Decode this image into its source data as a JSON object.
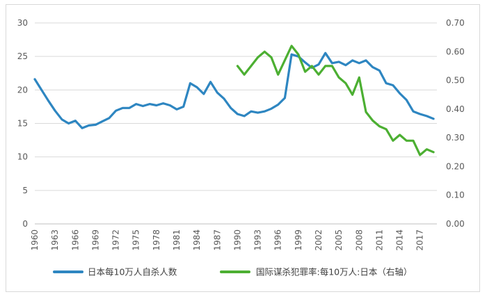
{
  "chart_data": {
    "type": "line",
    "title": "",
    "xlabel": "",
    "ylabel": "",
    "x_tick_labels": [
      "1960",
      "1963",
      "1966",
      "1969",
      "1972",
      "1975",
      "1978",
      "1981",
      "1984",
      "1987",
      "1990",
      "1993",
      "1996",
      "1999",
      "2002",
      "2005",
      "2008",
      "2011",
      "2014",
      "2017"
    ],
    "y_left": {
      "min": 0,
      "max": 30,
      "ticks": [
        "0",
        "5",
        "10",
        "15",
        "20",
        "25",
        "30"
      ]
    },
    "y_right": {
      "min": 0,
      "max": 0.7,
      "ticks": [
        "0.00",
        "0.10",
        "0.20",
        "0.30",
        "0.40",
        "0.50",
        "0.60",
        "0.70"
      ]
    },
    "grid": "horizontal",
    "legend_position": "bottom",
    "series": [
      {
        "name": "日本每10万人自杀人数",
        "axis": "left",
        "color": "#2e86c1",
        "x": [
          1960,
          1961,
          1962,
          1963,
          1964,
          1965,
          1966,
          1967,
          1968,
          1969,
          1970,
          1971,
          1972,
          1973,
          1974,
          1975,
          1976,
          1977,
          1978,
          1979,
          1980,
          1981,
          1982,
          1983,
          1984,
          1985,
          1986,
          1987,
          1988,
          1989,
          1990,
          1991,
          1992,
          1993,
          1994,
          1995,
          1996,
          1997,
          1998,
          1999,
          2000,
          2001,
          2002,
          2003,
          2004,
          2005,
          2006,
          2007,
          2008,
          2009,
          2010,
          2011,
          2012,
          2013,
          2014,
          2015,
          2016,
          2017,
          2018,
          2019
        ],
        "values": [
          21.6,
          20.0,
          18.4,
          16.9,
          15.6,
          15.0,
          15.4,
          14.3,
          14.7,
          14.8,
          15.3,
          15.8,
          16.9,
          17.3,
          17.3,
          17.9,
          17.6,
          17.9,
          17.7,
          18.0,
          17.7,
          17.1,
          17.5,
          21.0,
          20.4,
          19.4,
          21.2,
          19.6,
          18.7,
          17.3,
          16.4,
          16.1,
          16.8,
          16.6,
          16.8,
          17.2,
          17.8,
          18.8,
          25.3,
          25.0,
          24.1,
          23.3,
          23.8,
          25.5,
          24.0,
          24.2,
          23.7,
          24.4,
          24.0,
          24.4,
          23.4,
          22.9,
          21.0,
          20.7,
          19.5,
          18.5,
          16.8,
          16.4,
          16.1,
          15.7
        ]
      },
      {
        "name": "国际谋杀犯罪率:每10万人:日本（右轴）",
        "axis": "right",
        "color": "#4caf32",
        "x": [
          1990,
          1991,
          1992,
          1993,
          1994,
          1995,
          1996,
          1997,
          1998,
          1999,
          2000,
          2001,
          2002,
          2003,
          2004,
          2005,
          2006,
          2007,
          2008,
          2009,
          2010,
          2011,
          2012,
          2013,
          2014,
          2015,
          2016,
          2017,
          2018,
          2019
        ],
        "values": [
          0.55,
          0.52,
          0.55,
          0.58,
          0.6,
          0.58,
          0.52,
          0.57,
          0.62,
          0.59,
          0.53,
          0.55,
          0.52,
          0.55,
          0.55,
          0.51,
          0.49,
          0.45,
          0.51,
          0.39,
          0.36,
          0.34,
          0.33,
          0.29,
          0.31,
          0.29,
          0.29,
          0.24,
          0.26,
          0.25
        ]
      }
    ]
  }
}
